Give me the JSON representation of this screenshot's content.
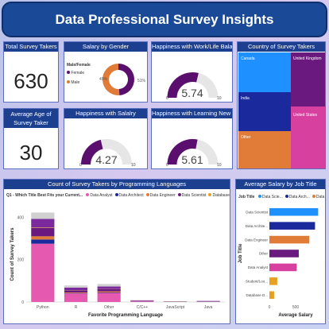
{
  "header": {
    "title": "Data Professional Survey Insights"
  },
  "cards": {
    "total": {
      "title": "Total Survey Takers",
      "value": "630"
    },
    "age": {
      "title": "Average Age of Survey Taker",
      "value": "30"
    }
  },
  "gender": {
    "title": "Salary by Gender",
    "legend_title": "Male/Female",
    "legend": [
      {
        "label": "Female",
        "color": "#5a0f6e"
      },
      {
        "label": "Male",
        "color": "#e07b38"
      }
    ],
    "pct_left": "49%",
    "pct_right": "51%"
  },
  "gauges": {
    "worklife": {
      "title": "Happiness with Work/Life Balance",
      "min": "0",
      "max": "10",
      "value": "5.74"
    },
    "salary": {
      "title": "Happiness with Salalry",
      "min": "0",
      "max": "10",
      "value": "4.27"
    },
    "learning": {
      "title": "Happiness with Learning New Things",
      "min": "0",
      "max": "10",
      "value": "5.61"
    }
  },
  "country": {
    "title": "Country of Survey Takers",
    "cells": [
      {
        "label": "Canada",
        "color": "#1e90ff"
      },
      {
        "label": "India",
        "color": "#1a2a9c"
      },
      {
        "label": "Other",
        "color": "#e07b38"
      },
      {
        "label": "United Kingdom",
        "color": "#6a1a7e"
      },
      {
        "label": "United States",
        "color": "#d8409f"
      }
    ]
  },
  "languages": {
    "title": "Count of Survey Takers by Programming Languages",
    "legend_title": "Q1 - Which Title Best Fits your Current...",
    "legend": [
      {
        "label": "Data Analyst",
        "color": "#e55ab0"
      },
      {
        "label": "Data Architect",
        "color": "#1a2a9c"
      },
      {
        "label": "Data Engineer",
        "color": "#e07b38"
      },
      {
        "label": "Data Scientist",
        "color": "#6a1a7e"
      },
      {
        "label": "Database D...",
        "color": "#e8a020"
      },
      {
        "label": "Other",
        "color": "#7a2a9c"
      },
      {
        "label": "Student/L...",
        "color": "#d0d0d0"
      }
    ]
  },
  "jobs": {
    "title": "Average Salary by Job Title",
    "legend_title": "Job Title",
    "legend": [
      {
        "label": "Data Scie...",
        "color": "#1e90ff"
      },
      {
        "label": "Data Arch...",
        "color": "#1a2a9c"
      },
      {
        "label": "Data En...",
        "color": "#e07b38"
      }
    ]
  },
  "chart_data": [
    {
      "type": "bar",
      "title": "Count of Survey Takers by Programming Languages",
      "xlabel": "Favorite Programming Language",
      "ylabel": "Count of Survey Takers",
      "categories": [
        "Python",
        "R",
        "Other",
        "C/C++",
        "JavaScript",
        "Java"
      ],
      "ylim": [
        0,
        450
      ],
      "yticks": [
        0,
        200,
        400
      ],
      "stacked": true,
      "series": [
        {
          "name": "Data Analyst",
          "color": "#e55ab0",
          "values": [
            275,
            40,
            43,
            3,
            0,
            1
          ]
        },
        {
          "name": "Data Architect",
          "color": "#1a2a9c",
          "values": [
            20,
            2,
            2,
            1,
            1,
            1
          ]
        },
        {
          "name": "Data Engineer",
          "color": "#e07b38",
          "values": [
            15,
            3,
            5,
            1,
            1,
            1
          ]
        },
        {
          "name": "Data Scientist",
          "color": "#6a1a7e",
          "values": [
            40,
            10,
            10,
            1,
            0,
            0
          ]
        },
        {
          "name": "Database D...",
          "color": "#e8a020",
          "values": [
            2,
            1,
            1,
            0,
            0,
            0
          ]
        },
        {
          "name": "Other",
          "color": "#7a2a9c",
          "values": [
            40,
            12,
            12,
            2,
            1,
            2
          ]
        },
        {
          "name": "Student/L...",
          "color": "#d0d0d0",
          "values": [
            30,
            10,
            12,
            1,
            1,
            1
          ]
        }
      ]
    },
    {
      "type": "bar",
      "orientation": "horizontal",
      "title": "Average Salary by Job Title",
      "xlabel": "Average Salary",
      "ylabel": "Job Title",
      "categories": [
        "Data Scientist",
        "Data Archite...",
        "Data Engineer",
        "Other",
        "Data Analyst",
        "Student/Loo...",
        "Database D..."
      ],
      "colors": [
        "#1e90ff",
        "#1a2a9c",
        "#e07b38",
        "#6a1a7e",
        "#d8409f",
        "#e8a020",
        "#e8a020"
      ],
      "values": [
        930,
        870,
        760,
        560,
        520,
        150,
        90
      ],
      "xlim": [
        0,
        1000
      ],
      "xticks": [
        0,
        500
      ]
    },
    {
      "type": "pie",
      "title": "Salary by Gender",
      "categories": [
        "Female",
        "Male"
      ],
      "values": [
        49,
        51
      ],
      "colors": [
        "#5a0f6e",
        "#e07b38"
      ]
    },
    {
      "type": "treemap",
      "title": "Country of Survey Takers",
      "categories": [
        "Canada",
        "India",
        "Other",
        "United Kingdom",
        "United States"
      ],
      "colors": [
        "#1e90ff",
        "#1a2a9c",
        "#e07b38",
        "#6a1a7e",
        "#d8409f"
      ]
    }
  ]
}
